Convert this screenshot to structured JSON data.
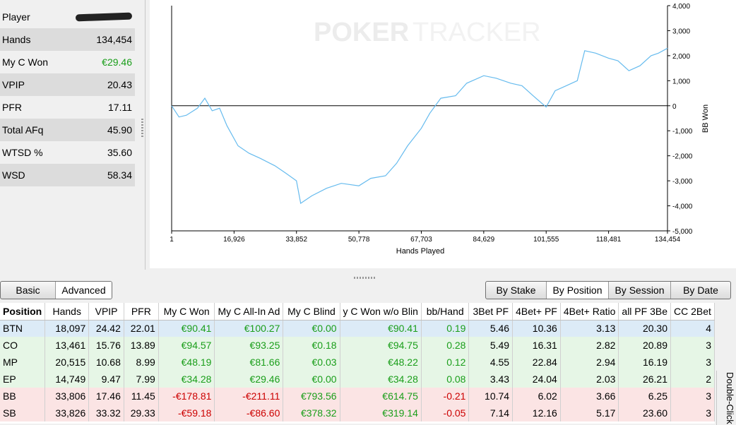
{
  "stats": {
    "rows": [
      {
        "label": "Player",
        "value": ""
      },
      {
        "label": "Hands",
        "value": "134,454"
      },
      {
        "label": "My C Won",
        "value": "€29.46"
      },
      {
        "label": "VPIP",
        "value": "20.43"
      },
      {
        "label": "PFR",
        "value": "17.11"
      },
      {
        "label": "Total AFq",
        "value": "45.90"
      },
      {
        "label": "WTSD %",
        "value": "35.60"
      },
      {
        "label": "WSD",
        "value": "58.34"
      }
    ]
  },
  "chart": {
    "watermark_left": "POKER",
    "watermark_right": "TRACKER",
    "line_color": "#66bbee"
  },
  "chart_data": {
    "type": "line",
    "xlabel": "Hands Played",
    "ylabel": "BB Won",
    "x_ticks": [
      "1",
      "16,926",
      "33,852",
      "50,778",
      "67,703",
      "84,629",
      "101,555",
      "118,481",
      "134,454"
    ],
    "y_ticks": [
      "4,000",
      "3,000",
      "2,000",
      "1,000",
      "0",
      "-1,000",
      "-2,000",
      "-3,000",
      "-4,000",
      "-5,000"
    ],
    "xlim": [
      1,
      134454
    ],
    "ylim": [
      -5000,
      4000
    ],
    "series": [
      {
        "x": [
          1,
          2000,
          4000,
          7000,
          9000,
          11000,
          13000,
          15000,
          18000,
          21000,
          24000,
          28000,
          31000,
          33852,
          35000,
          38000,
          42000,
          46000,
          50778,
          54000,
          58000,
          61000,
          64000,
          67703,
          70000,
          73000,
          77000,
          80000,
          84629,
          88000,
          92000,
          95000,
          98000,
          101555,
          104000,
          107000,
          110000,
          112000,
          115000,
          118481,
          121000,
          124000,
          127000,
          130000,
          132000,
          134454
        ],
        "y": [
          0,
          -450,
          -380,
          -100,
          300,
          -200,
          -100,
          -800,
          -1600,
          -1900,
          -2100,
          -2400,
          -2700,
          -3000,
          -3900,
          -3600,
          -3300,
          -3100,
          -3200,
          -2900,
          -2800,
          -2300,
          -1600,
          -900,
          -300,
          300,
          400,
          900,
          1200,
          1100,
          900,
          800,
          400,
          -50,
          600,
          800,
          1000,
          2200,
          2100,
          1900,
          1800,
          1400,
          1600,
          2000,
          2100,
          2300
        ]
      }
    ]
  },
  "tabs_left": [
    {
      "label": "Basic",
      "active": false
    },
    {
      "label": "Advanced",
      "active": true
    }
  ],
  "tabs_right": [
    {
      "label": "By Stake",
      "active": false
    },
    {
      "label": "By Position",
      "active": true
    },
    {
      "label": "By Session",
      "active": false
    },
    {
      "label": "By Date",
      "active": false
    }
  ],
  "table": {
    "columns": [
      "Position",
      "Hands",
      "VPIP",
      "PFR",
      "My C Won",
      "My C All-In Ad",
      "My C Blind",
      "y C Won w/o Blin",
      "bb/Hand",
      "3Bet PF",
      "4Bet+ PF",
      "4Bet+ Ratio",
      "all PF 3Be",
      "CC 2Bet"
    ],
    "rows": [
      {
        "style": "r-blue",
        "cells": [
          "BTN",
          "18,097",
          "24.42",
          "22.01",
          "€90.41",
          "€100.27",
          "€0.00",
          "€90.41",
          "0.19",
          "5.46",
          "10.36",
          "3.13",
          "20.30",
          "4"
        ]
      },
      {
        "style": "r-green",
        "cells": [
          "CO",
          "13,461",
          "15.76",
          "13.89",
          "€94.57",
          "€93.25",
          "€0.18",
          "€94.75",
          "0.28",
          "5.49",
          "16.31",
          "2.82",
          "20.89",
          "3"
        ]
      },
      {
        "style": "r-green",
        "cells": [
          "MP",
          "20,515",
          "10.68",
          "8.99",
          "€48.19",
          "€81.66",
          "€0.03",
          "€48.22",
          "0.12",
          "4.55",
          "22.84",
          "2.94",
          "16.19",
          "3"
        ]
      },
      {
        "style": "r-green",
        "cells": [
          "EP",
          "14,749",
          "9.47",
          "7.99",
          "€34.28",
          "€29.46",
          "€0.00",
          "€34.28",
          "0.08",
          "3.43",
          "24.04",
          "2.03",
          "26.21",
          "2"
        ]
      },
      {
        "style": "r-red",
        "cells": [
          "BB",
          "33,806",
          "17.46",
          "11.45",
          "-€178.81",
          "-€211.11",
          "€793.56",
          "€614.75",
          "-0.21",
          "10.74",
          "6.02",
          "3.66",
          "6.25",
          "3"
        ]
      },
      {
        "style": "r-red",
        "cells": [
          "SB",
          "33,826",
          "33.32",
          "29.33",
          "-€59.18",
          "-€86.60",
          "€378.32",
          "€319.14",
          "-0.05",
          "7.14",
          "12.16",
          "5.17",
          "23.60",
          "3"
        ]
      }
    ]
  },
  "side_label": "Double-Click"
}
